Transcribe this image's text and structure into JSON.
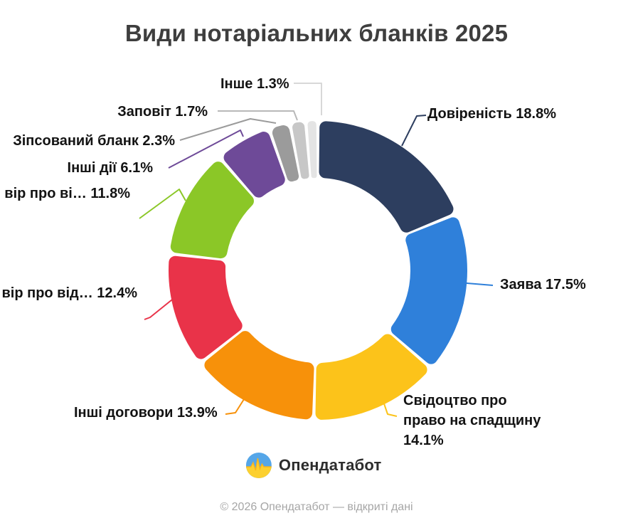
{
  "page": {
    "background": "#ffffff"
  },
  "title": {
    "text": "Види нотаріальних бланків 2025",
    "color": "#3e3e3e"
  },
  "chart_data": {
    "type": "pie",
    "subtype": "donut",
    "direction": "clockwise",
    "start_angle_deg": 0,
    "total_pct": 99.9,
    "label_color": "#131313",
    "segments": [
      {
        "name": "Довіреність",
        "value_pct": 18.8,
        "label": "Довіреність 18.8%",
        "color": "#2d3e5f",
        "connector_color": "#2d3e5f"
      },
      {
        "name": "Заява",
        "value_pct": 17.5,
        "label": "Заява 17.5%",
        "color": "#2f80da",
        "connector_color": "#2f80da"
      },
      {
        "name": "Свідоцтво про право на спадщину",
        "value_pct": 14.1,
        "label": "Свідоцтво про\nправо на спадщину\n14.1%",
        "color": "#fcc31a",
        "connector_color": "#fcc31a"
      },
      {
        "name": "Інші договори",
        "value_pct": 13.9,
        "label": "Інші договори 13.9%",
        "color": "#f7910a",
        "connector_color": "#f7910a"
      },
      {
        "name": "вір про від…",
        "value_pct": 12.4,
        "label": "вір про від… 12.4%",
        "color": "#e93349",
        "connector_color": "#e93349"
      },
      {
        "name": "вір про ві…",
        "value_pct": 11.8,
        "label": "вір про ві… 11.8%",
        "color": "#8bc727",
        "connector_color": "#8bc727"
      },
      {
        "name": "Інші дії",
        "value_pct": 6.1,
        "label": "Інші дії 6.1%",
        "color": "#6e4a98",
        "connector_color": "#6e4a98"
      },
      {
        "name": "Зіпсований бланк",
        "value_pct": 2.3,
        "label": "Зіпсований бланк 2.3%",
        "color": "#9b9b9b",
        "connector_color": "#9b9b9b"
      },
      {
        "name": "Заповіт",
        "value_pct": 1.7,
        "label": "Заповіт 1.7%",
        "color": "#c7c7c7",
        "connector_color": "#b8b8b8"
      },
      {
        "name": "Інше",
        "value_pct": 1.3,
        "label": "Інше 1.3%",
        "color": "#e4e4e4",
        "connector_color": "#d8d8d8"
      }
    ]
  },
  "brand": {
    "logo_text": "Опендатабот",
    "logo_blue": "#55a6e8",
    "logo_yellow": "#fcd02f"
  },
  "footer": {
    "text": "© 2026 Опендатабот — відкриті дані",
    "color": "#a6a6a6"
  }
}
